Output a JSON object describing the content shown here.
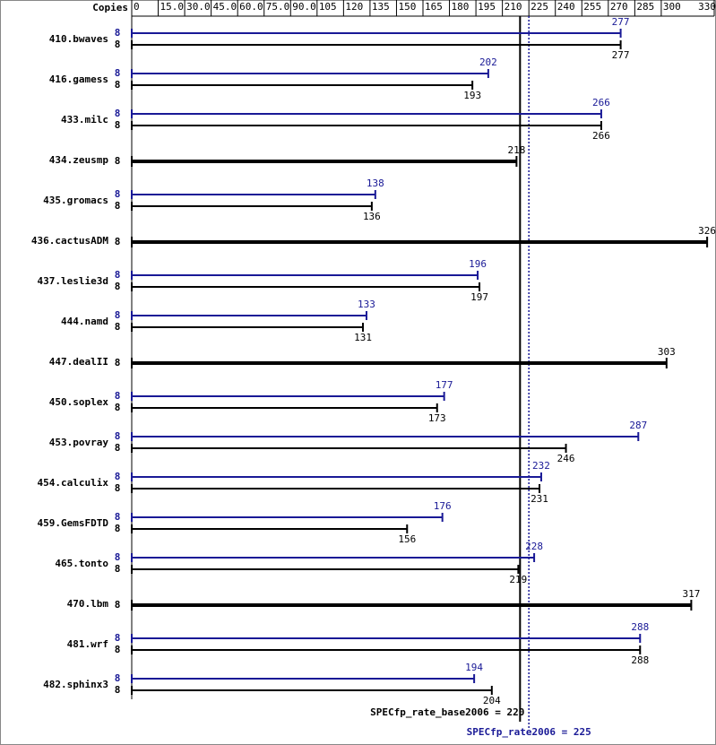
{
  "chart_data": {
    "type": "bar",
    "orientation": "horizontal",
    "x_axis_label": "Copies",
    "categories": [
      "410.bwaves",
      "416.gamess",
      "433.milc",
      "434.zeusmp",
      "435.gromacs",
      "436.cactusADM",
      "437.leslie3d",
      "444.namd",
      "447.dealII",
      "450.soplex",
      "453.povray",
      "454.calculix",
      "459.GemsFDTD",
      "465.tonto",
      "470.lbm",
      "481.wrf",
      "482.sphinx3"
    ],
    "series": [
      {
        "color": "#191996",
        "copies": [
          8,
          8,
          8,
          null,
          8,
          null,
          8,
          8,
          null,
          8,
          8,
          8,
          8,
          8,
          null,
          8,
          8
        ],
        "values": [
          277,
          202,
          266,
          null,
          138,
          null,
          196,
          133,
          null,
          177,
          287,
          232,
          176,
          228,
          null,
          288,
          194
        ]
      },
      {
        "color": "#000000",
        "copies": [
          8,
          8,
          8,
          8,
          8,
          8,
          8,
          8,
          8,
          8,
          8,
          8,
          8,
          8,
          8,
          8,
          8
        ],
        "values": [
          277,
          193,
          266,
          218,
          136,
          326,
          197,
          131,
          303,
          173,
          246,
          231,
          156,
          219,
          317,
          288,
          204
        ]
      }
    ],
    "xlim": [
      0,
      330
    ],
    "xticks": [
      0,
      {
        "value": 15,
        "label": "15.0"
      },
      {
        "value": 30,
        "label": "30.0"
      },
      {
        "value": 45,
        "label": "45.0"
      },
      {
        "value": 60,
        "label": "60.0"
      },
      {
        "value": 75,
        "label": "75.0"
      },
      {
        "value": 90,
        "label": "90.0"
      },
      105,
      120,
      135,
      150,
      165,
      180,
      195,
      210,
      225,
      240,
      255,
      270,
      285,
      300,
      330
    ],
    "annotations": [
      {
        "label": "SPECfp_rate_base2006 = 220",
        "value": 220,
        "color": "#000000",
        "style": "solid"
      },
      {
        "label": "SPECfp_rate2006 = 225",
        "value": 225,
        "color": "#191996",
        "style": "dotted"
      }
    ]
  }
}
